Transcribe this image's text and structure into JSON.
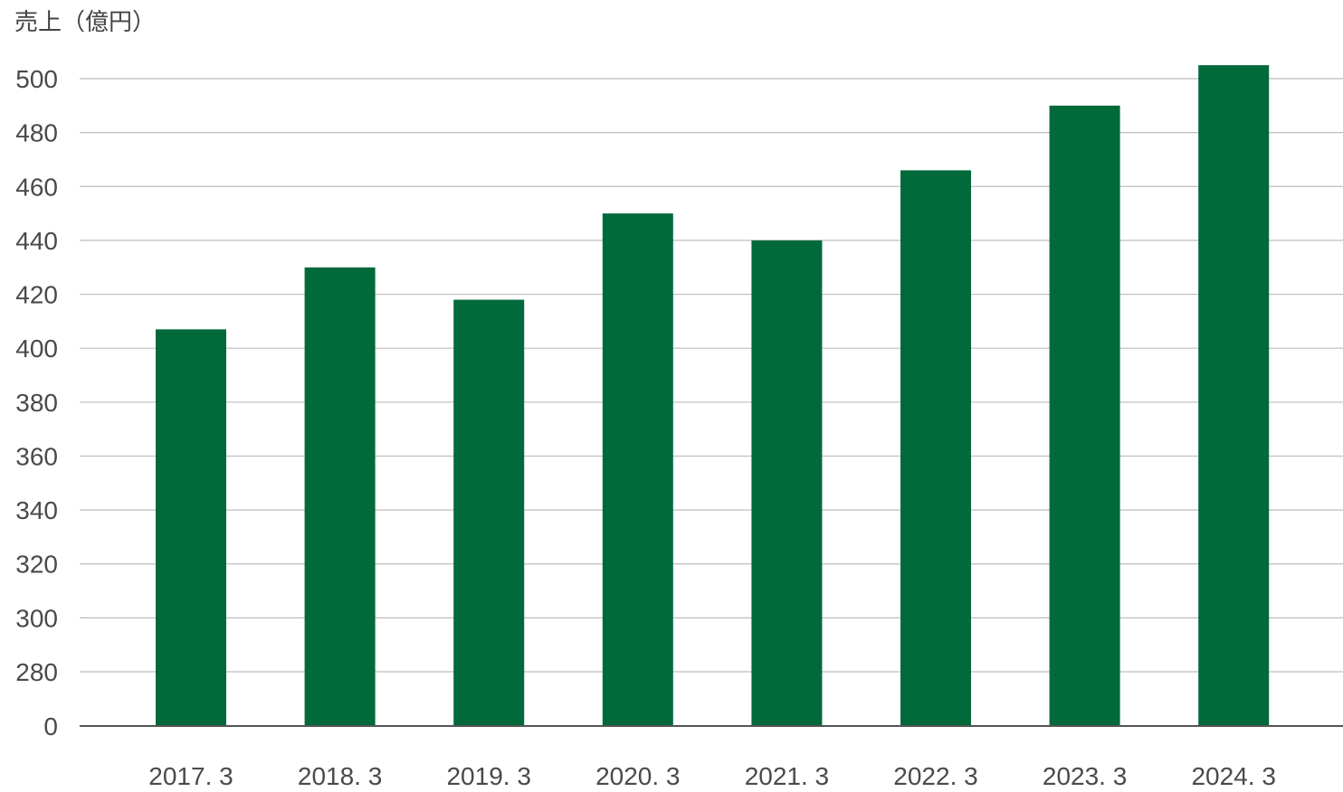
{
  "chart_data": {
    "type": "bar",
    "ylabel": "売上（億円）",
    "categories": [
      "2017. 3",
      "2018. 3",
      "2019. 3",
      "2020. 3",
      "2021. 3",
      "2022. 3",
      "2023. 3",
      "2024. 3"
    ],
    "values": [
      407,
      430,
      418,
      450,
      440,
      466,
      490,
      505
    ],
    "y_ticks": [
      "0",
      "280",
      "300",
      "320",
      "340",
      "360",
      "380",
      "400",
      "420",
      "440",
      "460",
      "480",
      "500"
    ],
    "ylim": [
      260,
      500
    ],
    "axis_break": "0 shown at baseline; scale resumes at 280",
    "grid": true,
    "bar_color": "#02693a"
  }
}
